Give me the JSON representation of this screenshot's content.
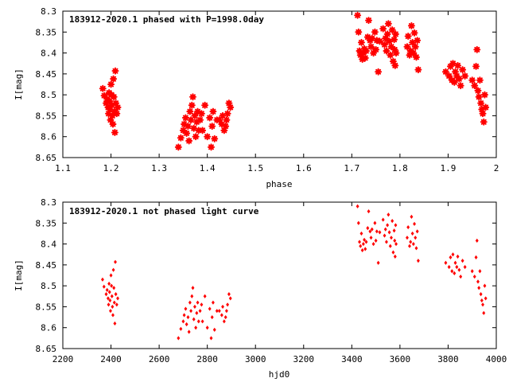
{
  "marker_color": "#ff0000",
  "chart_data": [
    {
      "type": "scatter",
      "title": "183912-2020.1 phased with P=1998.0day",
      "xlabel": "phase",
      "ylabel": "I[mag]",
      "xlim": [
        1.1,
        2.0
      ],
      "ylim": [
        8.3,
        8.65
      ],
      "y_inverted": true,
      "xticks": [
        1.1,
        1.2,
        1.3,
        1.4,
        1.5,
        1.6,
        1.7,
        1.8,
        1.9,
        2.0
      ],
      "xtick_labels": [
        "1.1",
        "1.2",
        "1.3",
        "1.4",
        "1.5",
        "1.6",
        "1.7",
        "1.8",
        "1.9",
        "2"
      ],
      "yticks": [
        8.3,
        8.35,
        8.4,
        8.45,
        8.5,
        8.55,
        8.6,
        8.65
      ],
      "ytick_labels": [
        "8.3",
        "8.35",
        "8.4",
        "8.45",
        "8.5",
        "8.55",
        "8.6",
        "8.65"
      ],
      "marker": "star",
      "grid": false,
      "points": [
        [
          1.183,
          8.485
        ],
        [
          1.186,
          8.502
        ],
        [
          1.19,
          8.52
        ],
        [
          1.192,
          8.51
        ],
        [
          1.194,
          8.53
        ],
        [
          1.195,
          8.545
        ],
        [
          1.196,
          8.495
        ],
        [
          1.197,
          8.515
        ],
        [
          1.198,
          8.535
        ],
        [
          1.199,
          8.56
        ],
        [
          1.2,
          8.475
        ],
        [
          1.201,
          8.5
        ],
        [
          1.202,
          8.525
        ],
        [
          1.203,
          8.55
        ],
        [
          1.204,
          8.57
        ],
        [
          1.205,
          8.462
        ],
        [
          1.206,
          8.505
        ],
        [
          1.207,
          8.54
        ],
        [
          1.208,
          8.59
        ],
        [
          1.209,
          8.443
        ],
        [
          1.21,
          8.52
        ],
        [
          1.212,
          8.545
        ],
        [
          1.214,
          8.53
        ],
        [
          1.34,
          8.625
        ],
        [
          1.345,
          8.603
        ],
        [
          1.35,
          8.585
        ],
        [
          1.352,
          8.57
        ],
        [
          1.355,
          8.555
        ],
        [
          1.357,
          8.592
        ],
        [
          1.36,
          8.575
        ],
        [
          1.362,
          8.61
        ],
        [
          1.364,
          8.54
        ],
        [
          1.366,
          8.56
        ],
        [
          1.368,
          8.525
        ],
        [
          1.37,
          8.505
        ],
        [
          1.372,
          8.58
        ],
        [
          1.374,
          8.55
        ],
        [
          1.376,
          8.6
        ],
        [
          1.378,
          8.565
        ],
        [
          1.38,
          8.54
        ],
        [
          1.382,
          8.585
        ],
        [
          1.385,
          8.56
        ],
        [
          1.388,
          8.545
        ],
        [
          1.39,
          8.585
        ],
        [
          1.395,
          8.525
        ],
        [
          1.4,
          8.6
        ],
        [
          1.405,
          8.555
        ],
        [
          1.408,
          8.625
        ],
        [
          1.41,
          8.575
        ],
        [
          1.412,
          8.54
        ],
        [
          1.415,
          8.605
        ],
        [
          1.42,
          8.56
        ],
        [
          1.425,
          8.56
        ],
        [
          1.43,
          8.57
        ],
        [
          1.432,
          8.55
        ],
        [
          1.435,
          8.585
        ],
        [
          1.438,
          8.575
        ],
        [
          1.44,
          8.56
        ],
        [
          1.442,
          8.545
        ],
        [
          1.445,
          8.52
        ],
        [
          1.448,
          8.53
        ],
        [
          1.712,
          8.31
        ],
        [
          1.714,
          8.35
        ],
        [
          1.716,
          8.395
        ],
        [
          1.718,
          8.405
        ],
        [
          1.72,
          8.375
        ],
        [
          1.722,
          8.415
        ],
        [
          1.724,
          8.4
        ],
        [
          1.726,
          8.39
        ],
        [
          1.728,
          8.412
        ],
        [
          1.73,
          8.395
        ],
        [
          1.733,
          8.362
        ],
        [
          1.735,
          8.322
        ],
        [
          1.738,
          8.37
        ],
        [
          1.74,
          8.385
        ],
        [
          1.742,
          8.365
        ],
        [
          1.745,
          8.4
        ],
        [
          1.748,
          8.35
        ],
        [
          1.75,
          8.392
        ],
        [
          1.752,
          8.37
        ],
        [
          1.755,
          8.445
        ],
        [
          1.758,
          8.372
        ],
        [
          1.765,
          8.342
        ],
        [
          1.768,
          8.38
        ],
        [
          1.77,
          8.365
        ],
        [
          1.772,
          8.395
        ],
        [
          1.774,
          8.355
        ],
        [
          1.776,
          8.33
        ],
        [
          1.778,
          8.372
        ],
        [
          1.78,
          8.405
        ],
        [
          1.782,
          8.385
        ],
        [
          1.784,
          8.345
        ],
        [
          1.786,
          8.42
        ],
        [
          1.788,
          8.368
        ],
        [
          1.789,
          8.392
        ],
        [
          1.79,
          8.43
        ],
        [
          1.791,
          8.355
        ],
        [
          1.792,
          8.4
        ],
        [
          1.815,
          8.385
        ],
        [
          1.817,
          8.36
        ],
        [
          1.82,
          8.405
        ],
        [
          1.822,
          8.395
        ],
        [
          1.824,
          8.335
        ],
        [
          1.826,
          8.375
        ],
        [
          1.828,
          8.4
        ],
        [
          1.83,
          8.352
        ],
        [
          1.832,
          8.385
        ],
        [
          1.834,
          8.41
        ],
        [
          1.836,
          8.37
        ],
        [
          1.838,
          8.44
        ],
        [
          1.895,
          8.445
        ],
        [
          1.902,
          8.455
        ],
        [
          1.905,
          8.432
        ],
        [
          1.908,
          8.465
        ],
        [
          1.91,
          8.425
        ],
        [
          1.913,
          8.47
        ],
        [
          1.915,
          8.445
        ],
        [
          1.918,
          8.455
        ],
        [
          1.92,
          8.43
        ],
        [
          1.923,
          8.462
        ],
        [
          1.926,
          8.478
        ],
        [
          1.93,
          8.44
        ],
        [
          1.935,
          8.455
        ],
        [
          1.95,
          8.465
        ],
        [
          1.955,
          8.478
        ],
        [
          1.958,
          8.432
        ],
        [
          1.96,
          8.392
        ],
        [
          1.962,
          8.49
        ],
        [
          1.964,
          8.505
        ],
        [
          1.966,
          8.465
        ],
        [
          1.968,
          8.52
        ],
        [
          1.97,
          8.535
        ],
        [
          1.972,
          8.545
        ],
        [
          1.974,
          8.565
        ],
        [
          1.976,
          8.5
        ],
        [
          1.978,
          8.53
        ]
      ]
    },
    {
      "type": "scatter",
      "title": "183912-2020.1 not phased light curve",
      "xlabel": "hjd0",
      "ylabel": "I[mag]",
      "xlim": [
        2200,
        4000
      ],
      "ylim": [
        8.3,
        8.65
      ],
      "y_inverted": true,
      "xticks": [
        2200,
        2400,
        2600,
        2800,
        3000,
        3200,
        3400,
        3600,
        3800,
        4000
      ],
      "xtick_labels": [
        "2200",
        "2400",
        "2600",
        "2800",
        "3000",
        "3200",
        "3400",
        "3600",
        "3800",
        "4000"
      ],
      "yticks": [
        8.3,
        8.35,
        8.4,
        8.45,
        8.5,
        8.55,
        8.6,
        8.65
      ],
      "ytick_labels": [
        "8.3",
        "8.35",
        "8.4",
        "8.45",
        "8.5",
        "8.55",
        "8.6",
        "8.65"
      ],
      "marker": "diamond",
      "grid": false,
      "points": [
        [
          2365,
          8.485
        ],
        [
          2371,
          8.502
        ],
        [
          2380,
          8.52
        ],
        [
          2384,
          8.51
        ],
        [
          2388,
          8.53
        ],
        [
          2390,
          8.545
        ],
        [
          2392,
          8.495
        ],
        [
          2394,
          8.515
        ],
        [
          2396,
          8.535
        ],
        [
          2398,
          8.56
        ],
        [
          2400,
          8.475
        ],
        [
          2402,
          8.5
        ],
        [
          2404,
          8.525
        ],
        [
          2406,
          8.55
        ],
        [
          2408,
          8.57
        ],
        [
          2410,
          8.462
        ],
        [
          2412,
          8.505
        ],
        [
          2414,
          8.54
        ],
        [
          2416,
          8.59
        ],
        [
          2418,
          8.443
        ],
        [
          2420,
          8.52
        ],
        [
          2424,
          8.545
        ],
        [
          2428,
          8.53
        ],
        [
          2680,
          8.625
        ],
        [
          2690,
          8.603
        ],
        [
          2700,
          8.585
        ],
        [
          2704,
          8.57
        ],
        [
          2710,
          8.555
        ],
        [
          2714,
          8.592
        ],
        [
          2720,
          8.575
        ],
        [
          2724,
          8.61
        ],
        [
          2728,
          8.54
        ],
        [
          2732,
          8.56
        ],
        [
          2736,
          8.525
        ],
        [
          2740,
          8.505
        ],
        [
          2744,
          8.58
        ],
        [
          2748,
          8.55
        ],
        [
          2752,
          8.6
        ],
        [
          2756,
          8.565
        ],
        [
          2760,
          8.54
        ],
        [
          2764,
          8.585
        ],
        [
          2770,
          8.56
        ],
        [
          2776,
          8.545
        ],
        [
          2780,
          8.585
        ],
        [
          2790,
          8.525
        ],
        [
          2800,
          8.6
        ],
        [
          2810,
          8.555
        ],
        [
          2816,
          8.625
        ],
        [
          2820,
          8.575
        ],
        [
          2824,
          8.54
        ],
        [
          2830,
          8.605
        ],
        [
          2840,
          8.56
        ],
        [
          2850,
          8.56
        ],
        [
          2860,
          8.57
        ],
        [
          2864,
          8.55
        ],
        [
          2870,
          8.585
        ],
        [
          2876,
          8.575
        ],
        [
          2880,
          8.56
        ],
        [
          2884,
          8.545
        ],
        [
          2890,
          8.52
        ],
        [
          2896,
          8.53
        ],
        [
          3424,
          8.31
        ],
        [
          3428,
          8.35
        ],
        [
          3432,
          8.395
        ],
        [
          3436,
          8.405
        ],
        [
          3440,
          8.375
        ],
        [
          3444,
          8.415
        ],
        [
          3448,
          8.4
        ],
        [
          3452,
          8.39
        ],
        [
          3456,
          8.412
        ],
        [
          3460,
          8.395
        ],
        [
          3466,
          8.362
        ],
        [
          3470,
          8.322
        ],
        [
          3476,
          8.37
        ],
        [
          3480,
          8.385
        ],
        [
          3484,
          8.365
        ],
        [
          3490,
          8.4
        ],
        [
          3496,
          8.35
        ],
        [
          3500,
          8.392
        ],
        [
          3504,
          8.37
        ],
        [
          3510,
          8.445
        ],
        [
          3516,
          8.372
        ],
        [
          3530,
          8.342
        ],
        [
          3536,
          8.38
        ],
        [
          3540,
          8.365
        ],
        [
          3544,
          8.395
        ],
        [
          3548,
          8.355
        ],
        [
          3552,
          8.33
        ],
        [
          3556,
          8.372
        ],
        [
          3560,
          8.405
        ],
        [
          3564,
          8.385
        ],
        [
          3568,
          8.345
        ],
        [
          3572,
          8.42
        ],
        [
          3576,
          8.368
        ],
        [
          3578,
          8.392
        ],
        [
          3580,
          8.43
        ],
        [
          3582,
          8.355
        ],
        [
          3584,
          8.4
        ],
        [
          3630,
          8.385
        ],
        [
          3634,
          8.36
        ],
        [
          3640,
          8.405
        ],
        [
          3644,
          8.395
        ],
        [
          3648,
          8.335
        ],
        [
          3652,
          8.375
        ],
        [
          3656,
          8.4
        ],
        [
          3660,
          8.352
        ],
        [
          3664,
          8.385
        ],
        [
          3668,
          8.41
        ],
        [
          3672,
          8.37
        ],
        [
          3676,
          8.44
        ],
        [
          3790,
          8.445
        ],
        [
          3804,
          8.455
        ],
        [
          3810,
          8.432
        ],
        [
          3816,
          8.465
        ],
        [
          3820,
          8.425
        ],
        [
          3826,
          8.47
        ],
        [
          3830,
          8.445
        ],
        [
          3836,
          8.455
        ],
        [
          3840,
          8.43
        ],
        [
          3846,
          8.462
        ],
        [
          3852,
          8.478
        ],
        [
          3860,
          8.44
        ],
        [
          3870,
          8.455
        ],
        [
          3900,
          8.465
        ],
        [
          3910,
          8.478
        ],
        [
          3916,
          8.432
        ],
        [
          3920,
          8.392
        ],
        [
          3924,
          8.49
        ],
        [
          3928,
          8.505
        ],
        [
          3932,
          8.465
        ],
        [
          3936,
          8.52
        ],
        [
          3940,
          8.535
        ],
        [
          3944,
          8.545
        ],
        [
          3948,
          8.565
        ],
        [
          3952,
          8.5
        ],
        [
          3956,
          8.53
        ]
      ]
    }
  ]
}
